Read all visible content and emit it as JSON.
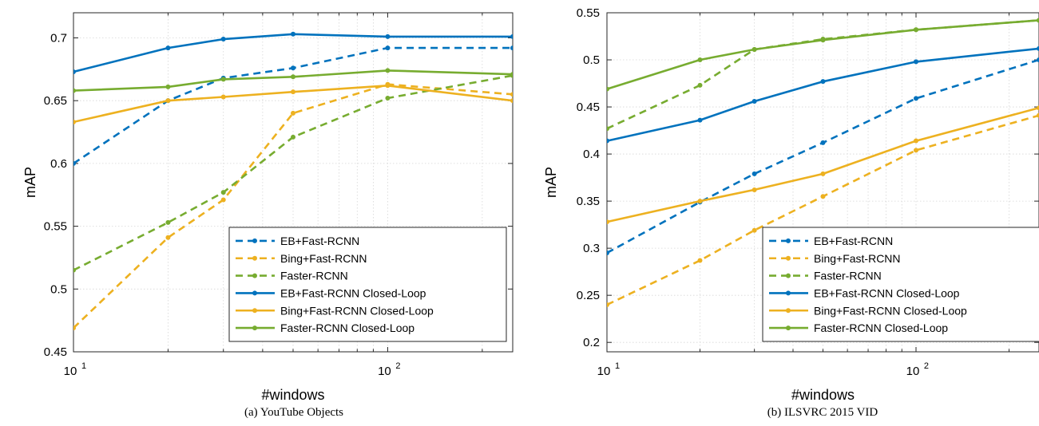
{
  "colors": {
    "blue": "#0072BD",
    "yellow": "#EDB120",
    "green": "#77AC30",
    "grid": "#d6d6d6",
    "axis": "#262626"
  },
  "chart_data": [
    {
      "type": "line",
      "caption": "(a) YouTube Objects",
      "xlabel": "#windows",
      "ylabel": "mAP",
      "xscale": "log",
      "xlim": [
        10,
        250
      ],
      "ylim": [
        0.45,
        0.72
      ],
      "xticks": [
        {
          "value": 10,
          "base": "10",
          "exp": "1"
        },
        {
          "value": 100,
          "base": "10",
          "exp": "2"
        }
      ],
      "yticks": [
        0.45,
        0.5,
        0.55,
        0.6,
        0.65,
        0.7
      ],
      "ytick_labels": [
        "0.45",
        "0.5",
        "0.55",
        "0.6",
        "0.65",
        "0.7"
      ],
      "grid": true,
      "legend_position": "bottom-right",
      "x": [
        10,
        20,
        30,
        50,
        100,
        250
      ],
      "series": [
        {
          "name": "EB+Fast-RCNN",
          "color": "blue",
          "style": "dashed",
          "values": [
            0.6,
            0.65,
            0.668,
            0.676,
            0.692,
            0.692
          ]
        },
        {
          "name": "Bing+Fast-RCNN",
          "color": "yellow",
          "style": "dashed",
          "values": [
            0.469,
            0.541,
            0.571,
            0.64,
            0.663,
            0.655
          ]
        },
        {
          "name": "Faster-RCNN",
          "color": "green",
          "style": "dashed",
          "values": [
            0.515,
            0.553,
            0.577,
            0.621,
            0.652,
            0.67
          ]
        },
        {
          "name": "EB+Fast-RCNN Closed-Loop",
          "color": "blue",
          "style": "solid",
          "values": [
            0.673,
            0.692,
            0.699,
            0.703,
            0.701,
            0.701
          ]
        },
        {
          "name": "Bing+Fast-RCNN Closed-Loop",
          "color": "yellow",
          "style": "solid",
          "values": [
            0.633,
            0.65,
            0.653,
            0.657,
            0.662,
            0.65
          ]
        },
        {
          "name": "Faster-RCNN Closed-Loop",
          "color": "green",
          "style": "solid",
          "values": [
            0.658,
            0.661,
            0.667,
            0.669,
            0.674,
            0.671
          ]
        }
      ]
    },
    {
      "type": "line",
      "caption": "(b) ILSVRC 2015 VID",
      "xlabel": "#windows",
      "ylabel": "mAP",
      "xscale": "log",
      "xlim": [
        10,
        250
      ],
      "ylim": [
        0.19,
        0.55
      ],
      "xticks": [
        {
          "value": 10,
          "base": "10",
          "exp": "1"
        },
        {
          "value": 100,
          "base": "10",
          "exp": "2"
        }
      ],
      "yticks": [
        0.2,
        0.25,
        0.3,
        0.35,
        0.4,
        0.45,
        0.5,
        0.55
      ],
      "ytick_labels": [
        "0.2",
        "0.25",
        "0.3",
        "0.35",
        "0.4",
        "0.45",
        "0.5",
        "0.55"
      ],
      "grid": true,
      "legend_position": "bottom-right",
      "x": [
        10,
        20,
        30,
        50,
        100,
        250
      ],
      "series": [
        {
          "name": "EB+Fast-RCNN",
          "color": "blue",
          "style": "dashed",
          "values": [
            0.295,
            0.349,
            0.379,
            0.412,
            0.459,
            0.5
          ]
        },
        {
          "name": "Bing+Fast-RCNN",
          "color": "yellow",
          "style": "dashed",
          "values": [
            0.24,
            0.287,
            0.319,
            0.355,
            0.404,
            0.441
          ]
        },
        {
          "name": "Faster-RCNN",
          "color": "green",
          "style": "dashed",
          "values": [
            0.427,
            0.473,
            0.511,
            0.522,
            0.532,
            0.542
          ]
        },
        {
          "name": "EB+Fast-RCNN Closed-Loop",
          "color": "blue",
          "style": "solid",
          "values": [
            0.414,
            0.436,
            0.456,
            0.477,
            0.498,
            0.512
          ]
        },
        {
          "name": "Bing+Fast-RCNN Closed-Loop",
          "color": "yellow",
          "style": "solid",
          "values": [
            0.328,
            0.35,
            0.362,
            0.379,
            0.414,
            0.449
          ]
        },
        {
          "name": "Faster-RCNN Closed-Loop",
          "color": "green",
          "style": "solid",
          "values": [
            0.469,
            0.5,
            0.511,
            0.521,
            0.532,
            0.542
          ]
        }
      ]
    }
  ]
}
